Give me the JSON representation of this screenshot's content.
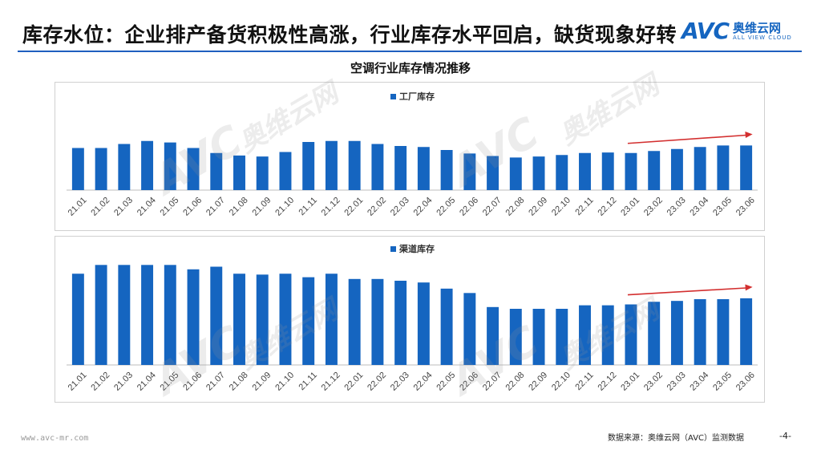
{
  "header": {
    "title": "库存水位：企业排产备货积极性高涨，行业库存水平回启，缺货现象好转",
    "logo_mark": "AVC",
    "logo_cn": "奥维云网",
    "logo_en": "ALL VIEW CLOUD"
  },
  "colors": {
    "bar": "#1565c0",
    "trend_arrow": "#d32f2f",
    "rule": "#1f5fbf"
  },
  "chart_title": "空调行业库存情况推移",
  "chart_data": [
    {
      "type": "bar",
      "title": "",
      "legend": [
        "工厂库存"
      ],
      "legend_position": "top",
      "categories": [
        "21.01",
        "21.02",
        "21.03",
        "21.04",
        "21.05",
        "21.06",
        "21.07",
        "21.08",
        "21.09",
        "21.10",
        "21.11",
        "21.12",
        "22.01",
        "22.02",
        "22.03",
        "22.04",
        "22.05",
        "22.06",
        "22.07",
        "22.08",
        "22.09",
        "22.10",
        "22.11",
        "22.12",
        "23.01",
        "23.02",
        "23.03",
        "23.04",
        "23.05",
        "23.06"
      ],
      "series": [
        {
          "name": "工厂库存",
          "values": [
            84,
            84,
            92,
            98,
            95,
            84,
            74,
            69,
            67,
            76,
            96,
            98,
            98,
            92,
            88,
            86,
            80,
            73,
            68,
            65,
            67,
            70,
            74,
            75,
            74,
            78,
            82,
            86,
            89,
            89
          ]
        }
      ],
      "ylim": [
        0,
        112
      ],
      "grid": false,
      "annotations": [
        "trend-arrow-up from 23.01 to 23.06"
      ]
    },
    {
      "type": "bar",
      "title": "",
      "legend": [
        "渠道库存"
      ],
      "legend_position": "top",
      "categories": [
        "21.01",
        "21.02",
        "21.03",
        "21.04",
        "21.05",
        "21.06",
        "21.07",
        "21.08",
        "21.09",
        "21.10",
        "21.11",
        "21.12",
        "22.01",
        "22.02",
        "22.03",
        "22.04",
        "22.05",
        "22.06",
        "22.07",
        "22.08",
        "22.09",
        "22.10",
        "22.11",
        "22.12",
        "23.01",
        "23.02",
        "23.03",
        "23.04",
        "23.05",
        "23.06"
      ],
      "series": [
        {
          "name": "渠道库存",
          "values": [
            104,
            114,
            114,
            114,
            114,
            109,
            112,
            104,
            103,
            104,
            100,
            104,
            98,
            98,
            96,
            94,
            87,
            82,
            66,
            64,
            64,
            64,
            68,
            68,
            69,
            72,
            73,
            75,
            75,
            76
          ]
        }
      ],
      "ylim": [
        0,
        128
      ],
      "grid": false,
      "annotations": [
        "trend-arrow-up from 23.01 to 23.06"
      ]
    }
  ],
  "watermark": {
    "cn": "奥维云网",
    "en": "ALL VIEW CLOUD",
    "mark": "AVC"
  },
  "footer": {
    "website": "www.avc-mr.com",
    "source": "数据来源：奥维云网（AVC）监测数据",
    "page": "-4-"
  }
}
